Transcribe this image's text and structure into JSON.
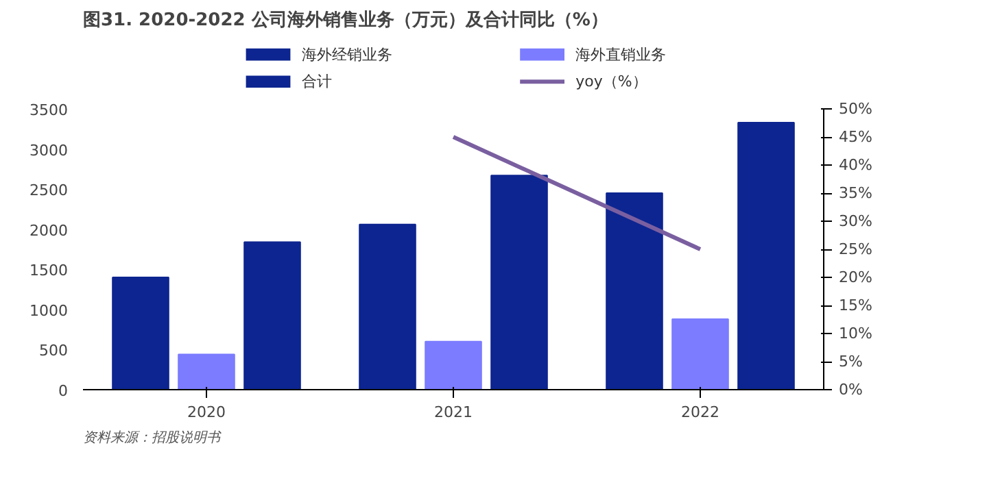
{
  "chart_data": {
    "type": "bar",
    "title": "图31. 2020-2022 公司海外销售业务（万元）及合计同比（%）",
    "categories": [
      "2020",
      "2021",
      "2022"
    ],
    "series": [
      {
        "name": "海外经销业务",
        "color": "#0d2590",
        "values": [
          1400,
          2060,
          2450
        ]
      },
      {
        "name": "海外直销业务",
        "color": "#7b7cff",
        "values": [
          440,
          600,
          880
        ]
      },
      {
        "name": "合计",
        "color": "#0d2590",
        "values": [
          1840,
          2670,
          3330
        ]
      },
      {
        "name": "yoy（%）",
        "type": "line",
        "axis": "y2",
        "color": "#7a5fa0",
        "values": [
          null,
          45,
          25
        ]
      }
    ],
    "ylim": [
      0,
      3500
    ],
    "yticks": [
      0,
      500,
      1000,
      1500,
      2000,
      2500,
      3000,
      3500
    ],
    "y2lim": [
      0,
      50
    ],
    "y2ticks": [
      {
        "value": 0,
        "label": "0%"
      },
      {
        "value": 5,
        "label": "5%"
      },
      {
        "value": 10,
        "label": "10%"
      },
      {
        "value": 15,
        "label": "15%"
      },
      {
        "value": 20,
        "label": "20%"
      },
      {
        "value": 25,
        "label": "25%"
      },
      {
        "value": 30,
        "label": "30%"
      },
      {
        "value": 35,
        "label": "35%"
      },
      {
        "value": 40,
        "label": "40%"
      },
      {
        "value": 45,
        "label": "45%"
      },
      {
        "value": 50,
        "label": "50%"
      }
    ],
    "legend": "top",
    "grid": false,
    "annotations": [
      "资料来源：招股说明书"
    ]
  }
}
